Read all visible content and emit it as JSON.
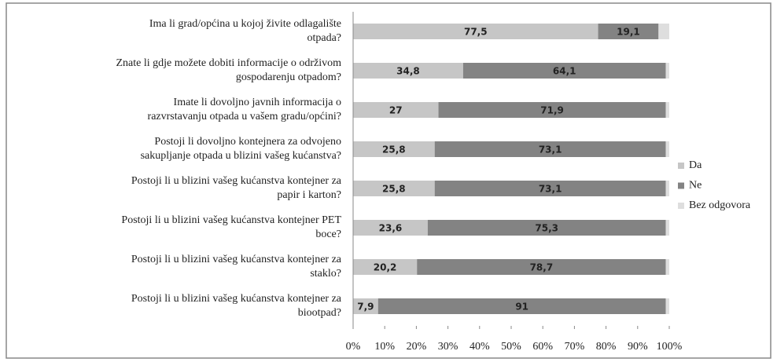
{
  "chart_data": {
    "type": "stacked_barh",
    "categories": [
      "Ima li grad/općina u kojoj živite odlagalište\notpada?",
      "Znate li gdje možete dobiti informacije o održivom\ngospodarenju otpadom?",
      "Imate li dovoljno javnih informacija o\nrazvrstavanju otpada u vašem gradu/općini?",
      "Postoji li dovoljno kontejnera za odvojeno\nsakupljanje otpada u blizini vašeg kućanstva?",
      "Postoji li u blizini vašeg kućanstva kontejner za\npapir i karton?",
      "Postoji li u blizini vašeg kućanstva kontejner PET\nboce?",
      "Postoji li u blizini vašeg kućanstva kontejner za\nstaklo?",
      "Postoji li u blizini vašeg kućanstva kontejner za\nbiootpad?"
    ],
    "series": [
      {
        "name": "Da",
        "color": "#c6c6c6",
        "values": [
          77.5,
          34.8,
          27,
          25.8,
          25.8,
          23.6,
          20.2,
          7.9
        ],
        "value_labels": [
          "77,5",
          "34,8",
          "27",
          "25,8",
          "25,8",
          "23,6",
          "20,2",
          "7,9"
        ]
      },
      {
        "name": "Ne",
        "color": "#838383",
        "values": [
          19.1,
          64.1,
          71.9,
          73.1,
          73.1,
          75.3,
          78.7,
          91
        ],
        "value_labels": [
          "19,1",
          "64,1",
          "71,9",
          "73,1",
          "73,1",
          "75,3",
          "78,7",
          "91"
        ]
      },
      {
        "name": "Bez odgovora",
        "color": "#dedede",
        "values": [
          3.4,
          1.1,
          1.1,
          1.1,
          1.1,
          1.1,
          1.1,
          1.1
        ]
      }
    ],
    "xlim": [
      0,
      100
    ],
    "xticks": [
      {
        "value": 0,
        "label": "0%"
      },
      {
        "value": 10,
        "label": "10%"
      },
      {
        "value": 20,
        "label": "20%"
      },
      {
        "value": 30,
        "label": "30%"
      },
      {
        "value": 40,
        "label": "40%"
      },
      {
        "value": 50,
        "label": "50%"
      },
      {
        "value": 60,
        "label": "60%"
      },
      {
        "value": 70,
        "label": "70%"
      },
      {
        "value": 80,
        "label": "80%"
      },
      {
        "value": 90,
        "label": "90%"
      },
      {
        "value": 100,
        "label": "100%"
      }
    ],
    "legend": "right"
  }
}
